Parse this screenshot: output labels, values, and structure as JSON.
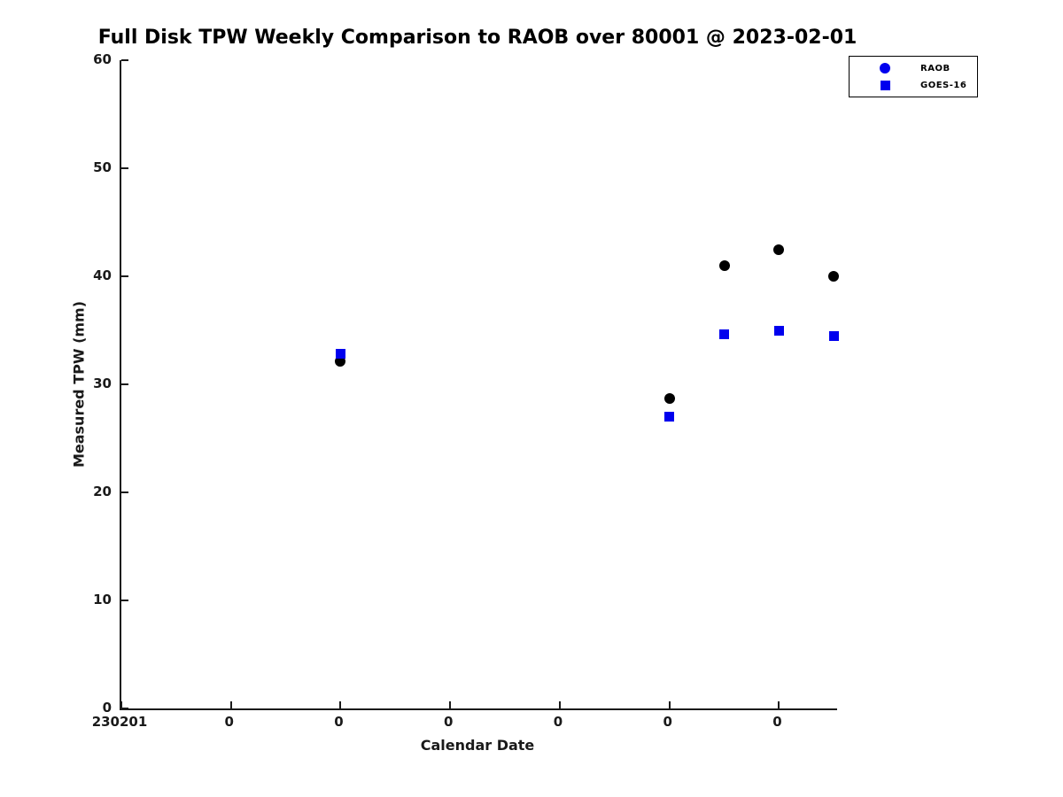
{
  "title": "Full Disk TPW Weekly Comparison to RAOB over 80001 @ 2023-02-01",
  "axes": {
    "xlabel": "Calendar Date",
    "ylabel": "Measured TPW (mm)",
    "y_tick_labels": [
      "0",
      "10",
      "20",
      "30",
      "40",
      "50",
      "60"
    ],
    "x_tick_labels": [
      "230201",
      "0",
      "0",
      "0",
      "0",
      "0",
      "0"
    ]
  },
  "legend": {
    "items": [
      {
        "label": "RAOB",
        "marker": "circle",
        "color": "#0000EE"
      },
      {
        "label": "GOES-16",
        "marker": "square",
        "color": "#0000EE"
      }
    ]
  },
  "colors": {
    "raob_point": "#000000",
    "goes16_point": "#0000EE",
    "axis": "#1a1a1a"
  },
  "chart_data": {
    "type": "scatter",
    "title": "Full Disk TPW Weekly Comparison to RAOB over 80001 @ 2023-02-01",
    "xlabel": "Calendar Date",
    "ylabel": "Measured TPW (mm)",
    "ylim": [
      0,
      60
    ],
    "xlim_days": [
      0,
      6.53
    ],
    "y_tick_values": [
      0,
      10,
      20,
      30,
      40,
      50,
      60
    ],
    "x_tick_values_days": [
      0,
      1,
      2,
      3,
      4,
      5,
      6
    ],
    "x_tick_labels": [
      "230201",
      "0",
      "0",
      "0",
      "0",
      "0",
      "0"
    ],
    "grid": false,
    "legend_position": "top-right",
    "series": [
      {
        "name": "RAOB",
        "marker": "circle",
        "color": "#000000",
        "points": [
          {
            "x_days": 2.0,
            "y": 32.1
          },
          {
            "x_days": 5.0,
            "y": 28.7
          },
          {
            "x_days": 5.5,
            "y": 41.0
          },
          {
            "x_days": 6.0,
            "y": 42.5
          },
          {
            "x_days": 6.5,
            "y": 40.0
          }
        ]
      },
      {
        "name": "GOES-16",
        "marker": "square",
        "color": "#0000EE",
        "points": [
          {
            "x_days": 2.0,
            "y": 32.8
          },
          {
            "x_days": 5.0,
            "y": 27.0
          },
          {
            "x_days": 5.5,
            "y": 34.6
          },
          {
            "x_days": 6.0,
            "y": 35.0
          },
          {
            "x_days": 6.5,
            "y": 34.5
          }
        ]
      }
    ]
  }
}
